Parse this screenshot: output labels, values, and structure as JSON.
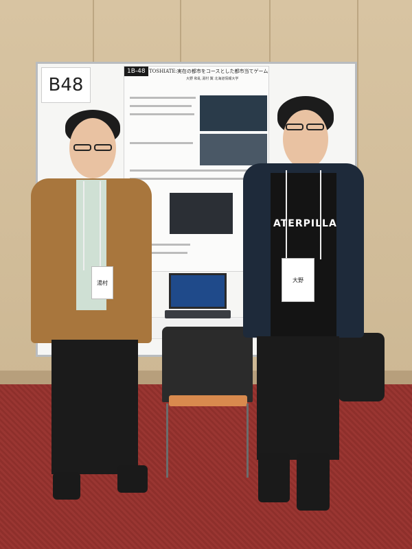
{
  "photo": {
    "booth_sign": "B48",
    "poster": {
      "id": "1B-48",
      "title": "TOSHIATE:実在の都市をコースとした都市当てゲーム",
      "authors": "大野 和乱  湯村 翼  北海道情報大学"
    },
    "shirt_text": "ATERPILLAR",
    "badges": {
      "left_name": "湯村",
      "right_name": "大野"
    }
  },
  "colors": {
    "wall": "#d8c4a2",
    "carpet": "#8e2f2b",
    "left_jacket": "#a8763d",
    "right_jacket": "#1e2a3a"
  }
}
